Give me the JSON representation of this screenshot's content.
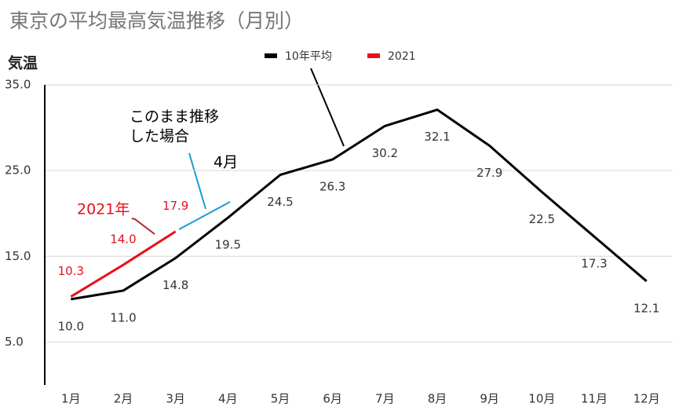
{
  "chart_data": {
    "type": "line",
    "title": "東京の平均最高気温推移（月別）",
    "ylabel": "気温",
    "categories": [
      "1月",
      "2月",
      "3月",
      "4月",
      "5月",
      "6月",
      "7月",
      "8月",
      "9月",
      "10月",
      "11月",
      "12月"
    ],
    "series": [
      {
        "name": "10年平均",
        "color": "#000000",
        "values": [
          10.0,
          11.0,
          14.8,
          19.5,
          24.5,
          26.3,
          30.2,
          32.1,
          27.9,
          22.5,
          17.3,
          12.1
        ],
        "value_labels": [
          "10.0",
          "11.0",
          "14.8",
          "19.5",
          "24.5",
          "26.3",
          "30.2",
          "32.1",
          "27.9",
          "22.5",
          "17.3",
          "12.1"
        ]
      },
      {
        "name": "2021",
        "color": "#e8101a",
        "values": [
          10.3,
          14.0,
          17.9,
          null,
          null,
          null,
          null,
          null,
          null,
          null,
          null,
          null
        ],
        "value_labels": [
          "10.3",
          "14.0",
          "17.9",
          null,
          null,
          null,
          null,
          null,
          null,
          null,
          null,
          null
        ]
      }
    ],
    "ylim": [
      0,
      35
    ],
    "yticks": [
      {
        "value": 5,
        "label": "5.0"
      },
      {
        "value": 15,
        "label": "15.0"
      },
      {
        "value": 25,
        "label": "25.0"
      },
      {
        "value": 35,
        "label": "35.0"
      }
    ],
    "grid": true,
    "legend": "top",
    "annotations": [
      "このまま推移",
      "した場合",
      "4月",
      "2021年"
    ]
  }
}
